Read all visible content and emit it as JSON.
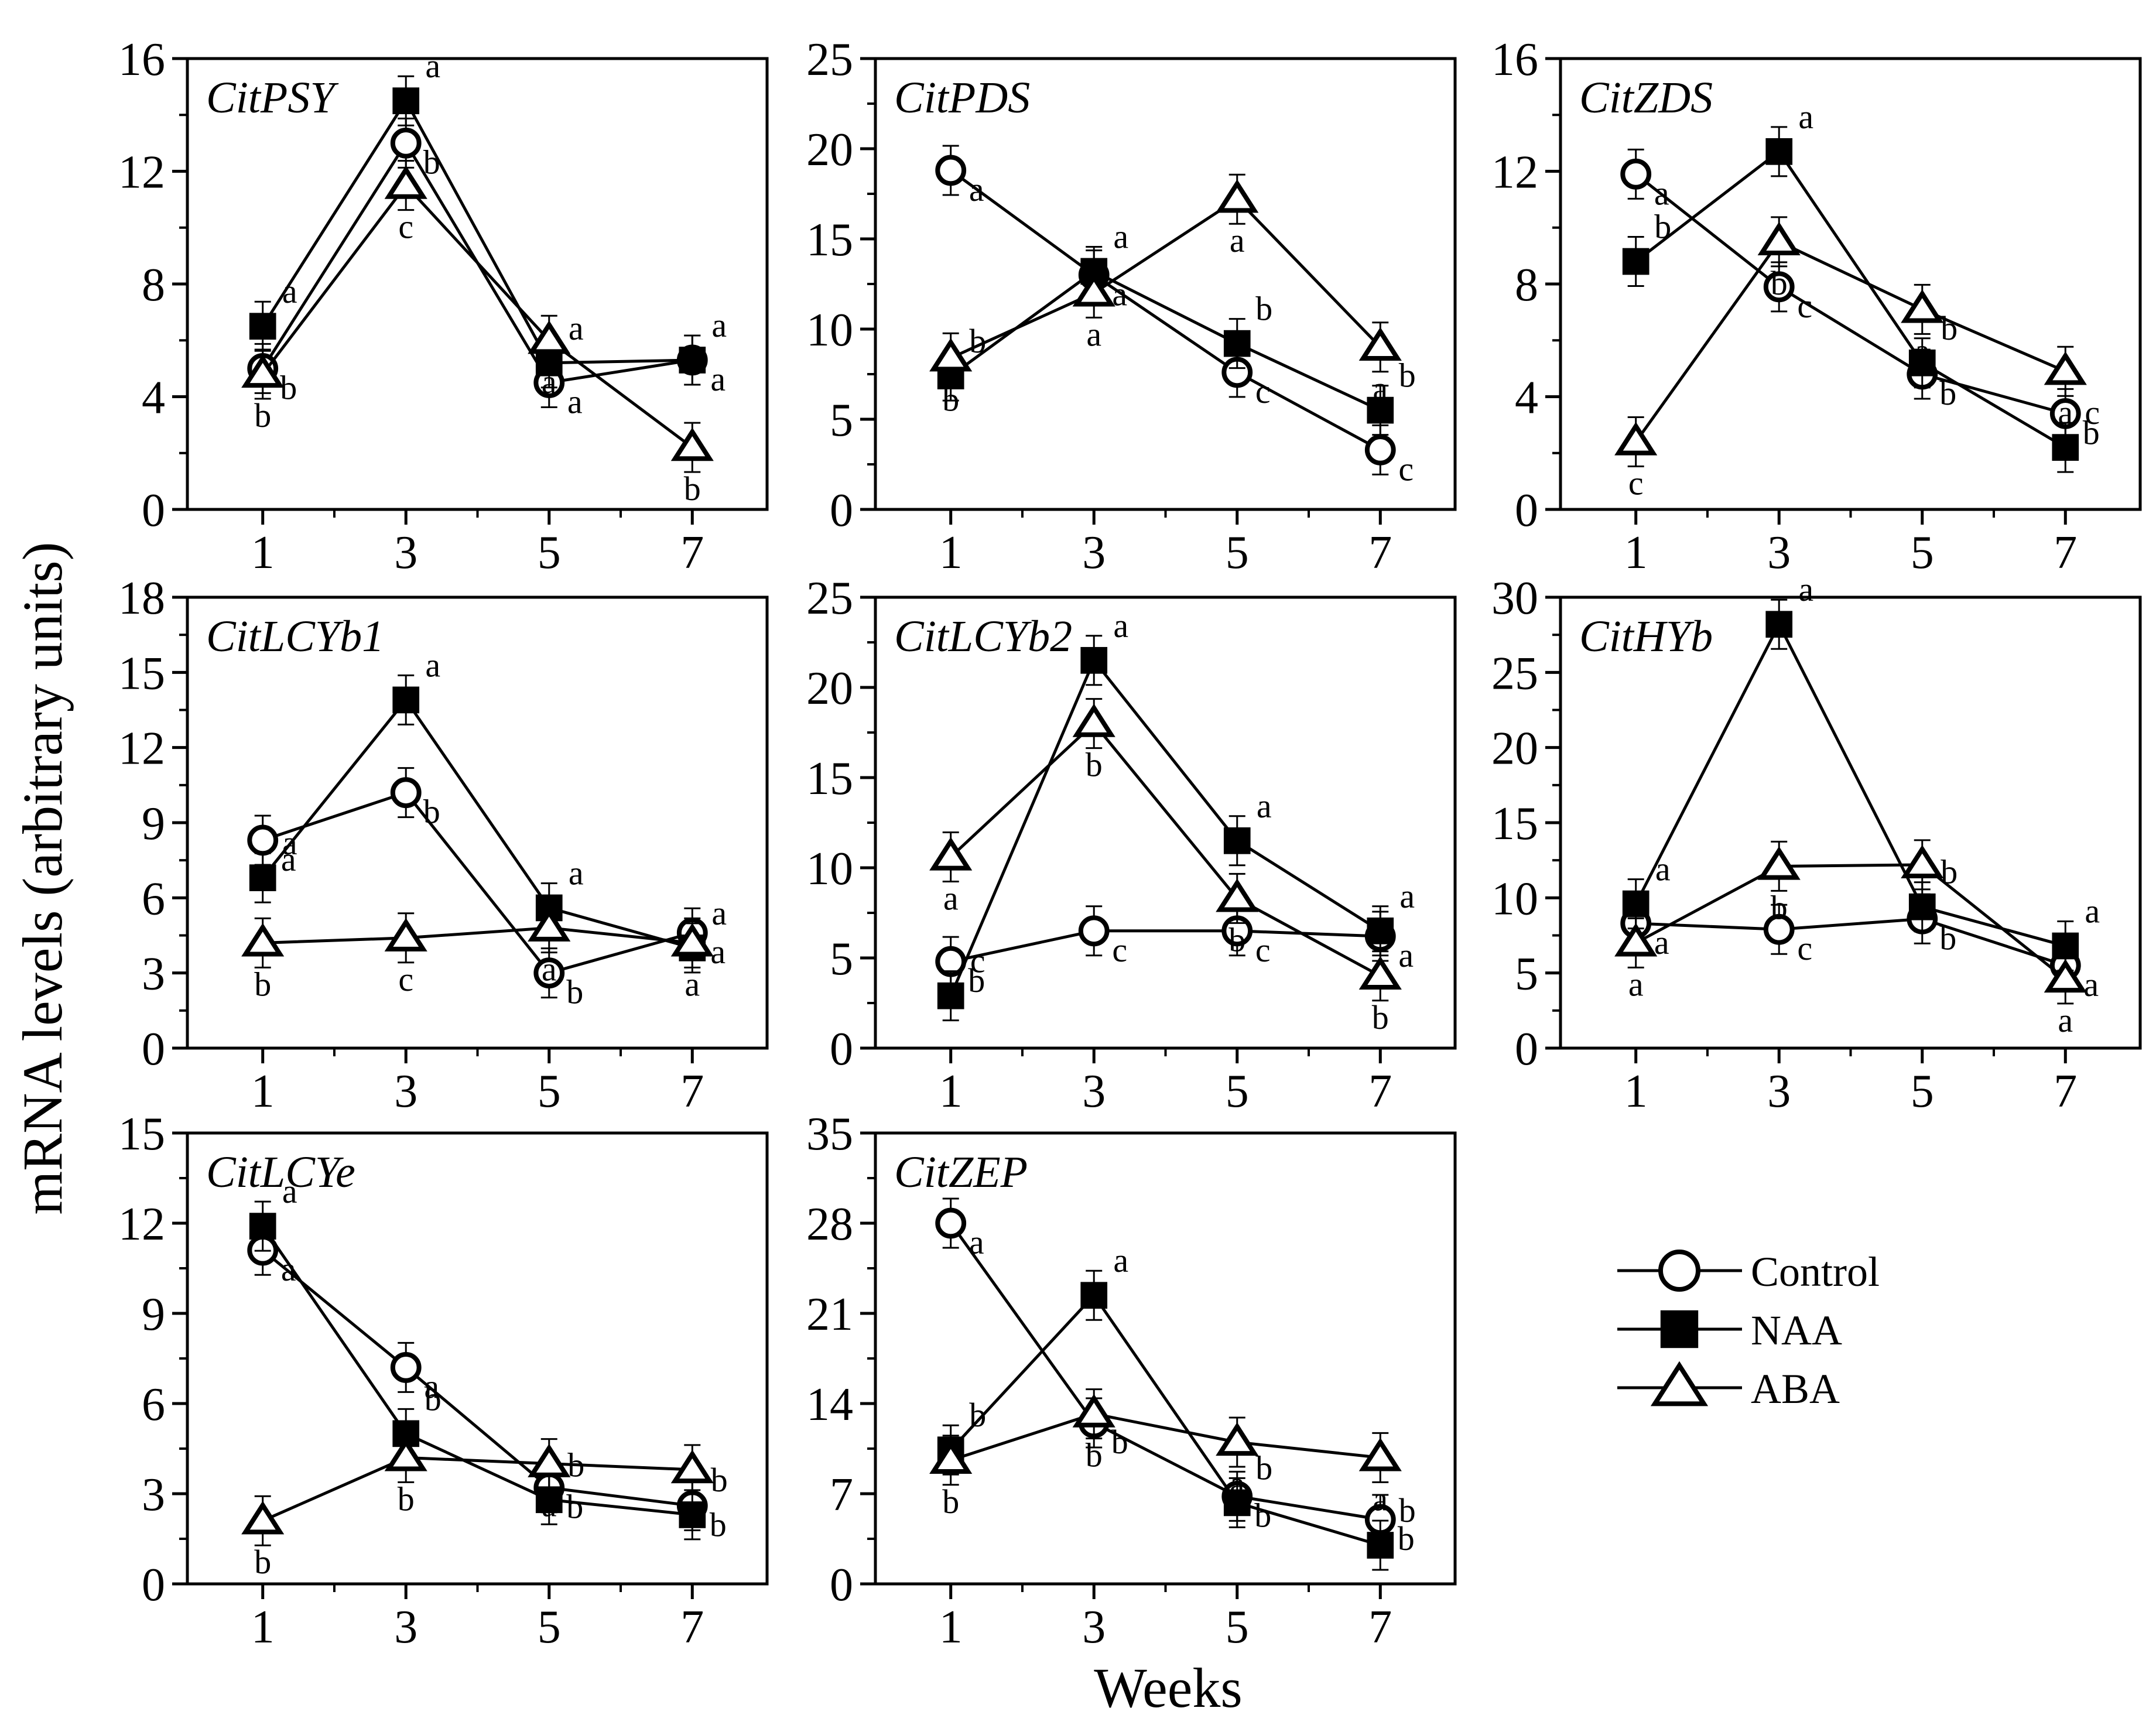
{
  "figure": {
    "ylabel": "mRNA levels (arbitrary units)",
    "xlabel": "Weeks"
  },
  "legend": [
    {
      "name": "Control",
      "marker": "circle-open"
    },
    {
      "name": "NAA",
      "marker": "square-filled"
    },
    {
      "name": "ABA",
      "marker": "triangle-open"
    }
  ],
  "chart_data": [
    {
      "type": "line",
      "title": "CitPSY",
      "categories": [
        "1",
        "3",
        "5",
        "7"
      ],
      "ylim": [
        0,
        16
      ],
      "yticks": [
        0,
        4,
        8,
        12,
        16
      ],
      "series": [
        {
          "name": "Control",
          "values": [
            5.0,
            13.0,
            4.5,
            5.3
          ],
          "letters": [
            "b",
            "b",
            "a",
            "a"
          ]
        },
        {
          "name": "NAA",
          "values": [
            6.5,
            14.5,
            5.2,
            5.3
          ],
          "letters": [
            "a",
            "a",
            "a",
            "a"
          ]
        },
        {
          "name": "ABA",
          "values": [
            4.8,
            11.5,
            6.0,
            2.2
          ],
          "letters": [
            "b",
            "c",
            "a",
            "b"
          ]
        }
      ]
    },
    {
      "type": "line",
      "title": "CitPDS",
      "categories": [
        "1",
        "3",
        "5",
        "7"
      ],
      "ylim": [
        0,
        25
      ],
      "yticks": [
        0,
        5,
        10,
        15,
        20,
        25
      ],
      "series": [
        {
          "name": "Control",
          "values": [
            18.8,
            13.0,
            7.6,
            3.3
          ],
          "letters": [
            "a",
            "a",
            "c",
            "c"
          ]
        },
        {
          "name": "NAA",
          "values": [
            7.4,
            13.2,
            9.2,
            5.5
          ],
          "letters": [
            "b",
            "a",
            "b",
            "b"
          ]
        },
        {
          "name": "ABA",
          "values": [
            8.4,
            12.0,
            17.2,
            9.0
          ],
          "letters": [
            "b",
            "a",
            "a",
            "a"
          ]
        }
      ]
    },
    {
      "type": "line",
      "title": "CitZDS",
      "categories": [
        "1",
        "3",
        "5",
        "7"
      ],
      "ylim": [
        0,
        16
      ],
      "yticks": [
        0,
        4,
        8,
        12,
        16
      ],
      "series": [
        {
          "name": "Control",
          "values": [
            11.9,
            7.9,
            4.8,
            3.4
          ],
          "letters": [
            "a",
            "c",
            "b",
            "b"
          ]
        },
        {
          "name": "NAA",
          "values": [
            8.8,
            12.7,
            5.2,
            2.2
          ],
          "letters": [
            "b",
            "a",
            "b",
            "c"
          ]
        },
        {
          "name": "ABA",
          "values": [
            2.4,
            9.5,
            7.1,
            4.9
          ],
          "letters": [
            "c",
            "b",
            "a",
            "a"
          ]
        }
      ]
    },
    {
      "type": "line",
      "title": "CitLCYb1",
      "categories": [
        "1",
        "3",
        "5",
        "7"
      ],
      "ylim": [
        0,
        18
      ],
      "yticks": [
        0,
        3,
        6,
        9,
        12,
        15,
        18
      ],
      "series": [
        {
          "name": "Control",
          "values": [
            8.3,
            10.2,
            3.0,
            4.6
          ],
          "letters": [
            "a",
            "b",
            "b",
            "a"
          ]
        },
        {
          "name": "NAA",
          "values": [
            6.8,
            13.9,
            5.6,
            4.0
          ],
          "letters": [
            "a",
            "a",
            "a",
            "a"
          ]
        },
        {
          "name": "ABA",
          "values": [
            4.2,
            4.4,
            4.8,
            4.2
          ],
          "letters": [
            "b",
            "c",
            "a",
            "a"
          ]
        }
      ]
    },
    {
      "type": "line",
      "title": "CitLCYb2",
      "categories": [
        "1",
        "3",
        "5",
        "7"
      ],
      "ylim": [
        0,
        25
      ],
      "yticks": [
        0,
        5,
        10,
        15,
        20,
        25
      ],
      "series": [
        {
          "name": "Control",
          "values": [
            4.8,
            6.5,
            6.5,
            6.2
          ],
          "letters": [
            "b",
            "c",
            "c",
            "a"
          ]
        },
        {
          "name": "NAA",
          "values": [
            2.9,
            21.5,
            11.5,
            6.5
          ],
          "letters": [
            "c",
            "a",
            "a",
            "a"
          ]
        },
        {
          "name": "ABA",
          "values": [
            10.6,
            18.0,
            8.3,
            4.0
          ],
          "letters": [
            "a",
            "b",
            "b",
            "b"
          ]
        }
      ]
    },
    {
      "type": "line",
      "title": "CitHYb",
      "categories": [
        "1",
        "3",
        "5",
        "7"
      ],
      "ylim": [
        0,
        30
      ],
      "yticks": [
        0,
        5,
        10,
        15,
        20,
        25,
        30
      ],
      "series": [
        {
          "name": "Control",
          "values": [
            8.3,
            7.9,
            8.6,
            5.5
          ],
          "letters": [
            "a",
            "c",
            "b",
            "a"
          ]
        },
        {
          "name": "NAA",
          "values": [
            9.6,
            28.2,
            9.4,
            6.8
          ],
          "letters": [
            "a",
            "a",
            "b",
            "a"
          ]
        },
        {
          "name": "ABA",
          "values": [
            7.0,
            12.1,
            12.2,
            4.6
          ],
          "letters": [
            "a",
            "b",
            "a",
            "a"
          ]
        }
      ]
    },
    {
      "type": "line",
      "title": "CitLCYe",
      "categories": [
        "1",
        "3",
        "5",
        "7"
      ],
      "ylim": [
        0,
        15
      ],
      "yticks": [
        0,
        3,
        6,
        9,
        12,
        15
      ],
      "series": [
        {
          "name": "Control",
          "values": [
            11.1,
            7.2,
            3.2,
            2.6
          ],
          "letters": [
            "a",
            "a",
            "b",
            "b"
          ]
        },
        {
          "name": "NAA",
          "values": [
            11.9,
            5.0,
            2.8,
            2.3
          ],
          "letters": [
            "a",
            "b",
            "b",
            "b"
          ]
        },
        {
          "name": "ABA",
          "values": [
            2.1,
            4.2,
            4.0,
            3.8
          ],
          "letters": [
            "b",
            "b",
            "a",
            "a"
          ]
        }
      ]
    },
    {
      "type": "line",
      "title": "CitZEP",
      "categories": [
        "1",
        "3",
        "5",
        "7"
      ],
      "ylim": [
        0,
        35
      ],
      "yticks": [
        0,
        7,
        14,
        21,
        28,
        35
      ],
      "series": [
        {
          "name": "Control",
          "values": [
            28.0,
            12.5,
            6.8,
            5.0
          ],
          "letters": [
            "a",
            "b",
            "b",
            "b"
          ]
        },
        {
          "name": "NAA",
          "values": [
            10.4,
            22.4,
            6.3,
            3.0
          ],
          "letters": [
            "b",
            "a",
            "b",
            "b"
          ]
        },
        {
          "name": "ABA",
          "values": [
            9.6,
            13.2,
            11.0,
            9.8
          ],
          "letters": [
            "b",
            "b",
            "a",
            "a"
          ]
        }
      ]
    }
  ]
}
